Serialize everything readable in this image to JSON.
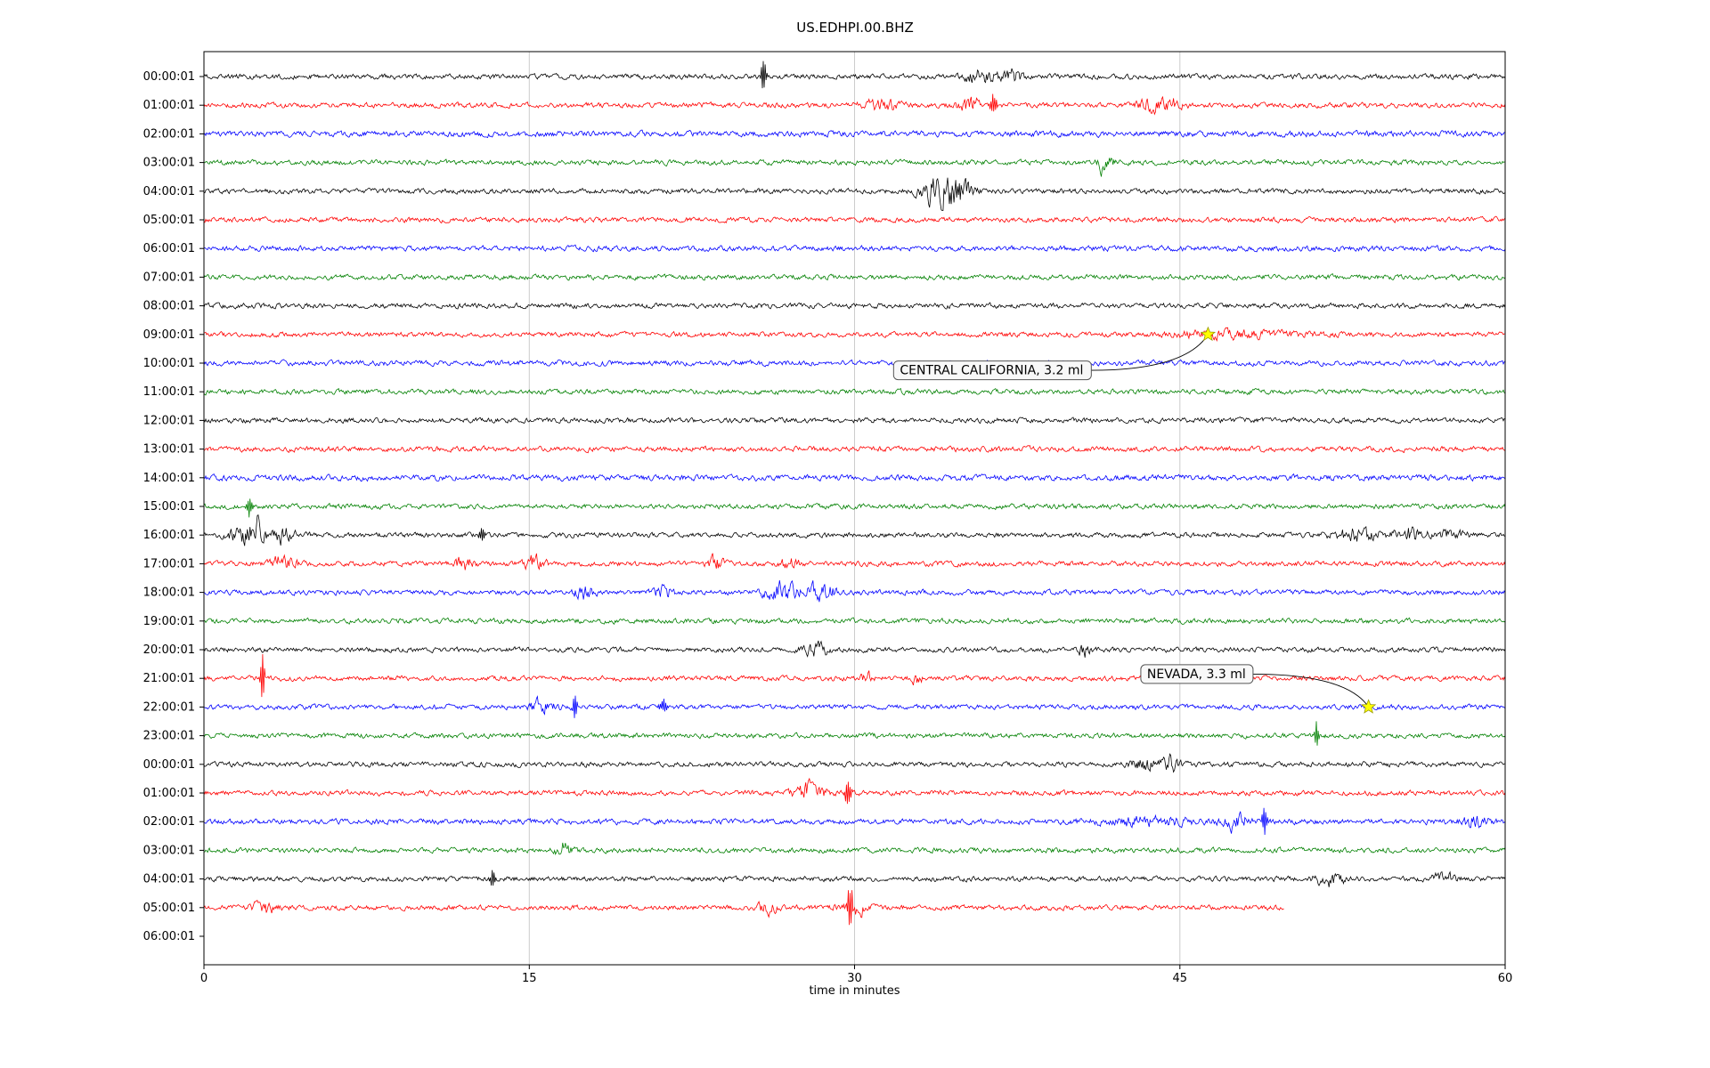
{
  "chart_data": {
    "type": "line",
    "subtype": "seismogram-helicorder",
    "title": "US.EDHPI.00.BHZ",
    "xlabel": "time in minutes",
    "xlim": [
      0,
      60
    ],
    "x_ticks": [
      0,
      15,
      30,
      45,
      60
    ],
    "grid": "vertical",
    "legend": "none",
    "trace_color_cycle": [
      "#000000",
      "#ff0000",
      "#0000ff",
      "#008000"
    ],
    "rows": [
      {
        "label": "00:00:01",
        "color": "#000000",
        "noise": 1.0,
        "end": 60,
        "bursts": [
          [
            25.8,
            8,
            0.08
          ],
          [
            35.8,
            3,
            0.5
          ],
          [
            37.3,
            2.5,
            0.3
          ]
        ]
      },
      {
        "label": "01:00:01",
        "color": "#ff0000",
        "noise": 1.0,
        "end": 60,
        "bursts": [
          [
            31.2,
            2,
            0.6
          ],
          [
            35.3,
            3,
            0.4
          ],
          [
            36.4,
            5,
            0.1
          ],
          [
            43.8,
            2.5,
            0.5
          ],
          [
            44.8,
            2,
            0.3
          ]
        ]
      },
      {
        "label": "02:00:01",
        "color": "#0000ff",
        "noise": 1.15,
        "end": 60,
        "bursts": []
      },
      {
        "label": "03:00:01",
        "color": "#008000",
        "noise": 1.0,
        "end": 60,
        "bursts": [
          [
            41.5,
            4,
            0.25
          ]
        ]
      },
      {
        "label": "04:00:01",
        "color": "#000000",
        "noise": 1.0,
        "end": 60,
        "bursts": [
          [
            33.9,
            6,
            0.6
          ],
          [
            34.9,
            5,
            0.35
          ]
        ]
      },
      {
        "label": "05:00:01",
        "color": "#ff0000",
        "noise": 1.0,
        "end": 60,
        "bursts": []
      },
      {
        "label": "06:00:01",
        "color": "#0000ff",
        "noise": 1.05,
        "end": 60,
        "bursts": []
      },
      {
        "label": "07:00:01",
        "color": "#008000",
        "noise": 1.0,
        "end": 60,
        "bursts": []
      },
      {
        "label": "08:00:01",
        "color": "#000000",
        "noise": 1.0,
        "end": 60,
        "bursts": []
      },
      {
        "label": "09:00:01",
        "color": "#ff0000",
        "noise": 1.0,
        "end": 60,
        "bursts": [
          [
            47.5,
            1.2,
            2.0
          ]
        ]
      },
      {
        "label": "10:00:01",
        "color": "#0000ff",
        "noise": 1.05,
        "end": 60,
        "bursts": []
      },
      {
        "label": "11:00:01",
        "color": "#008000",
        "noise": 1.0,
        "end": 60,
        "bursts": []
      },
      {
        "label": "12:00:01",
        "color": "#000000",
        "noise": 1.0,
        "end": 60,
        "bursts": []
      },
      {
        "label": "13:00:01",
        "color": "#ff0000",
        "noise": 1.05,
        "end": 60,
        "bursts": []
      },
      {
        "label": "14:00:01",
        "color": "#0000ff",
        "noise": 1.15,
        "end": 60,
        "bursts": []
      },
      {
        "label": "15:00:01",
        "color": "#008000",
        "noise": 1.0,
        "end": 60,
        "bursts": [
          [
            2.1,
            5,
            0.08
          ]
        ]
      },
      {
        "label": "16:00:01",
        "color": "#000000",
        "noise": 1.0,
        "end": 60,
        "bursts": [
          [
            1.9,
            4,
            0.5
          ],
          [
            2.4,
            5,
            0.25
          ],
          [
            3.6,
            3,
            0.4
          ],
          [
            12.8,
            3,
            0.1
          ],
          [
            53.2,
            2.5,
            0.8
          ],
          [
            55.6,
            3,
            0.5
          ],
          [
            57.6,
            2,
            0.4
          ]
        ]
      },
      {
        "label": "17:00:01",
        "color": "#ff0000",
        "noise": 1.0,
        "end": 60,
        "bursts": [
          [
            3.6,
            3,
            0.4
          ],
          [
            12.0,
            2.5,
            0.3
          ],
          [
            15.2,
            3,
            0.35
          ],
          [
            23.6,
            2.5,
            0.25
          ],
          [
            27.0,
            2,
            0.3
          ]
        ]
      },
      {
        "label": "18:00:01",
        "color": "#0000ff",
        "noise": 1.0,
        "end": 60,
        "bursts": [
          [
            17.5,
            3,
            0.3
          ],
          [
            21.2,
            2.5,
            0.3
          ],
          [
            26.6,
            4,
            0.5
          ],
          [
            28.4,
            3.5,
            0.5
          ]
        ]
      },
      {
        "label": "19:00:01",
        "color": "#008000",
        "noise": 1.0,
        "end": 60,
        "bursts": []
      },
      {
        "label": "20:00:01",
        "color": "#000000",
        "noise": 1.0,
        "end": 60,
        "bursts": [
          [
            28.2,
            2.5,
            0.4
          ],
          [
            40.6,
            2.5,
            0.2
          ]
        ]
      },
      {
        "label": "21:00:01",
        "color": "#ff0000",
        "noise": 1.0,
        "end": 60,
        "bursts": [
          [
            2.7,
            13,
            0.06
          ],
          [
            30.6,
            2.5,
            0.2
          ],
          [
            32.8,
            2,
            0.2
          ]
        ]
      },
      {
        "label": "22:00:01",
        "color": "#0000ff",
        "noise": 1.0,
        "end": 60,
        "bursts": [
          [
            15.6,
            3,
            0.4
          ],
          [
            17.1,
            7,
            0.07
          ],
          [
            21.2,
            3,
            0.12
          ]
        ]
      },
      {
        "label": "23:00:01",
        "color": "#008000",
        "noise": 1.0,
        "end": 60,
        "bursts": [
          [
            51.3,
            7,
            0.06
          ]
        ]
      },
      {
        "label": "00:00:01",
        "color": "#000000",
        "noise": 1.0,
        "end": 60,
        "bursts": [
          [
            43.6,
            3,
            0.5
          ],
          [
            44.6,
            2.5,
            0.3
          ]
        ]
      },
      {
        "label": "01:00:01",
        "color": "#ff0000",
        "noise": 1.0,
        "end": 60,
        "bursts": [
          [
            27.9,
            3.5,
            0.5
          ],
          [
            29.7,
            6,
            0.1
          ]
        ]
      },
      {
        "label": "02:00:01",
        "color": "#0000ff",
        "noise": 1.1,
        "end": 60,
        "bursts": [
          [
            43.5,
            1.5,
            1.5
          ],
          [
            47.6,
            3,
            0.4
          ],
          [
            48.9,
            8,
            0.07
          ],
          [
            58.6,
            2.5,
            0.4
          ]
        ]
      },
      {
        "label": "03:00:01",
        "color": "#008000",
        "noise": 1.0,
        "end": 60,
        "bursts": [
          [
            16.6,
            3.5,
            0.25
          ]
        ]
      },
      {
        "label": "04:00:01",
        "color": "#000000",
        "noise": 1.0,
        "end": 60,
        "bursts": [
          [
            13.3,
            5,
            0.07
          ],
          [
            51.9,
            2.5,
            0.5
          ],
          [
            57.1,
            2,
            0.4
          ]
        ]
      },
      {
        "label": "05:00:01",
        "color": "#ff0000",
        "noise": 1.0,
        "end": 49.8,
        "bursts": [
          [
            2.8,
            2.5,
            0.4
          ],
          [
            26.0,
            2.5,
            0.3
          ],
          [
            29.8,
            9,
            0.09
          ],
          [
            30.0,
            3,
            0.5
          ]
        ]
      },
      {
        "label": "06:00:01",
        "color": "#0000ff",
        "noise": 1.0,
        "end": 0,
        "bursts": []
      }
    ],
    "events": [
      {
        "label": "CENTRAL CALIFORNIA, 3.2 ml",
        "row": 9,
        "minute": 46.3,
        "box_minute": 31.8,
        "box_row": 10.25,
        "marker": "star",
        "marker_color": "#ffff00"
      },
      {
        "label": "NEVADA, 3.3 ml",
        "row": 22,
        "minute": 53.7,
        "box_minute": 43.2,
        "box_row": 20.85,
        "marker": "star",
        "marker_color": "#ffff00"
      }
    ],
    "colors": {
      "grid": "#cccccc",
      "frame": "#000000",
      "tick_label": "#000000",
      "star_fill": "#ffff00",
      "star_edge": "#999900",
      "annotation_bg": "#f8f8f8",
      "annotation_border": "#555555"
    }
  }
}
